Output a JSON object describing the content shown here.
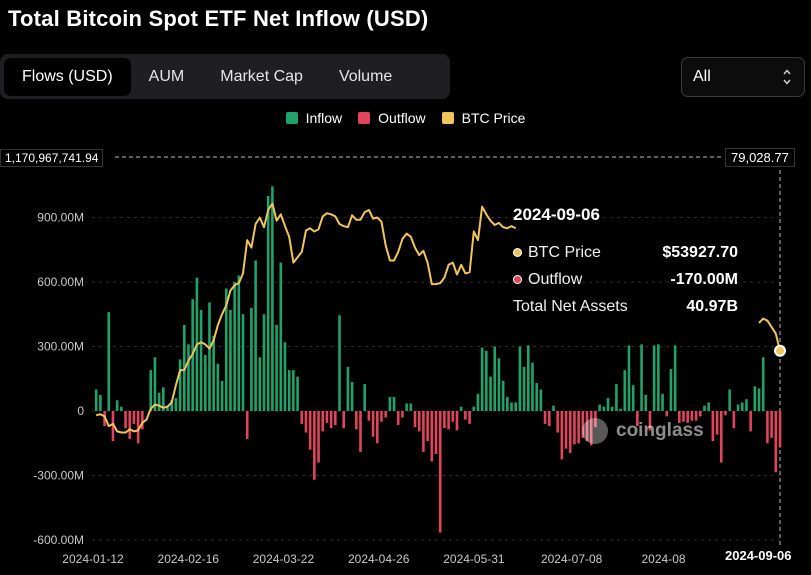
{
  "title": "Total Bitcoin Spot ETF Net Inflow (USD)",
  "tabs": [
    {
      "label": "Flows (USD)",
      "active": true
    },
    {
      "label": "AUM",
      "active": false
    },
    {
      "label": "Market Cap",
      "active": false
    },
    {
      "label": "Volume",
      "active": false
    }
  ],
  "select": {
    "value": "All",
    "icon": "updown-chevron-icon"
  },
  "legend": [
    {
      "label": "Inflow",
      "color": "#1fa36b"
    },
    {
      "label": "Outflow",
      "color": "#e0455b"
    },
    {
      "label": "BTC Price",
      "color": "#f2c55c"
    }
  ],
  "crosshair": {
    "left_value": "1,170,967,741.94",
    "right_value": "79,028.77",
    "date": "2024-09-06"
  },
  "tooltip": {
    "date": "2024-09-06",
    "rows": [
      {
        "label": "BTC Price",
        "value": "$53927.70",
        "dot_color": "#f2c55c"
      },
      {
        "label": "Outflow",
        "value": "-170.00M",
        "dot_color": "#e0455b"
      },
      {
        "label": "Total Net Assets",
        "value": "40.97B",
        "dot_color": ""
      }
    ]
  },
  "watermark": "coinglass",
  "chart_data": {
    "type": "bar",
    "y_ticks": [
      "900.00M",
      "600.00M",
      "300.00M",
      "0",
      "-300.00M",
      "-600.00M"
    ],
    "y_tick_values": [
      900,
      600,
      300,
      0,
      -300,
      -600
    ],
    "x_ticks": [
      "2024-01-12",
      "2024-02-16",
      "2024-03-22",
      "2024-04-26",
      "2024-05-31",
      "2024-07-08",
      "2024-08"
    ],
    "ylim": [
      -600,
      900
    ],
    "xlim": [
      0,
      164
    ],
    "bars": [
      [
        1,
        100
      ],
      [
        2,
        75
      ],
      [
        3,
        -70
      ],
      [
        4,
        460
      ],
      [
        5,
        -140
      ],
      [
        6,
        50
      ],
      [
        7,
        20
      ],
      [
        8,
        -80
      ],
      [
        9,
        -130
      ],
      [
        10,
        -60
      ],
      [
        11,
        -150
      ],
      [
        12,
        -85
      ],
      [
        14,
        190
      ],
      [
        15,
        250
      ],
      [
        16,
        85
      ],
      [
        17,
        110
      ],
      [
        18,
        25
      ],
      [
        19,
        50
      ],
      [
        20,
        60
      ],
      [
        21,
        240
      ],
      [
        22,
        400
      ],
      [
        23,
        310
      ],
      [
        24,
        520
      ],
      [
        25,
        620
      ],
      [
        26,
        470
      ],
      [
        27,
        260
      ],
      [
        28,
        505
      ],
      [
        29,
        350
      ],
      [
        30,
        220
      ],
      [
        31,
        140
      ],
      [
        32,
        570
      ],
      [
        33,
        470
      ],
      [
        34,
        600
      ],
      [
        35,
        630
      ],
      [
        36,
        450
      ],
      [
        37,
        -130
      ],
      [
        38,
        480
      ],
      [
        39,
        700
      ],
      [
        40,
        250
      ],
      [
        41,
        450
      ],
      [
        42,
        1000
      ],
      [
        43,
        1045
      ],
      [
        44,
        400
      ],
      [
        45,
        690
      ],
      [
        46,
        320
      ],
      [
        47,
        190
      ],
      [
        48,
        190
      ],
      [
        49,
        160
      ],
      [
        50,
        -60
      ],
      [
        51,
        -100
      ],
      [
        52,
        -180
      ],
      [
        53,
        -320
      ],
      [
        54,
        -240
      ],
      [
        55,
        -95
      ],
      [
        56,
        -55
      ],
      [
        57,
        -80
      ],
      [
        58,
        -65
      ],
      [
        59,
        445
      ],
      [
        60,
        -80
      ],
      [
        61,
        205
      ],
      [
        62,
        135
      ],
      [
        63,
        -85
      ],
      [
        64,
        -190
      ],
      [
        65,
        125
      ],
      [
        66,
        -45
      ],
      [
        67,
        -120
      ],
      [
        68,
        -150
      ],
      [
        69,
        -50
      ],
      [
        70,
        -30
      ],
      [
        71,
        65
      ],
      [
        72,
        65
      ],
      [
        73,
        -65
      ],
      [
        74,
        -30
      ],
      [
        75,
        35
      ],
      [
        76,
        35
      ],
      [
        77,
        -75
      ],
      [
        78,
        -95
      ],
      [
        79,
        -190
      ],
      [
        80,
        -140
      ],
      [
        81,
        -235
      ],
      [
        82,
        -200
      ],
      [
        83,
        -565
      ],
      [
        84,
        -80
      ],
      [
        85,
        -85
      ],
      [
        86,
        -50
      ],
      [
        87,
        -90
      ],
      [
        88,
        20
      ],
      [
        89,
        -40
      ],
      [
        90,
        -60
      ],
      [
        91,
        20
      ],
      [
        92,
        80
      ],
      [
        93,
        295
      ],
      [
        94,
        280
      ],
      [
        95,
        160
      ],
      [
        96,
        300
      ],
      [
        97,
        245
      ],
      [
        98,
        140
      ],
      [
        99,
        65
      ],
      [
        100,
        40
      ],
      [
        101,
        40
      ],
      [
        102,
        300
      ],
      [
        103,
        205
      ],
      [
        104,
        305
      ],
      [
        105,
        225
      ],
      [
        106,
        130
      ],
      [
        107,
        100
      ],
      [
        108,
        -60
      ],
      [
        109,
        -70
      ],
      [
        110,
        25
      ],
      [
        111,
        -100
      ],
      [
        112,
        -225
      ],
      [
        113,
        -175
      ],
      [
        114,
        -195
      ],
      [
        115,
        -155
      ],
      [
        116,
        -150
      ],
      [
        117,
        -125
      ],
      [
        118,
        -140
      ],
      [
        119,
        -160
      ],
      [
        120,
        -75
      ],
      [
        121,
        30
      ],
      [
        122,
        20
      ],
      [
        123,
        60
      ],
      [
        124,
        20
      ],
      [
        125,
        125
      ],
      [
        126,
        10
      ],
      [
        127,
        190
      ],
      [
        128,
        305
      ],
      [
        129,
        120
      ],
      [
        130,
        -70
      ],
      [
        131,
        310
      ],
      [
        132,
        75
      ],
      [
        133,
        -90
      ],
      [
        134,
        305
      ],
      [
        135,
        310
      ],
      [
        136,
        80
      ],
      [
        137,
        -25
      ],
      [
        138,
        195
      ],
      [
        139,
        305
      ],
      [
        140,
        -55
      ],
      [
        141,
        -50
      ],
      [
        142,
        -55
      ],
      [
        143,
        -45
      ],
      [
        144,
        -45
      ],
      [
        145,
        -25
      ],
      [
        146,
        25
      ],
      [
        147,
        40
      ],
      [
        148,
        -140
      ],
      [
        149,
        -110
      ],
      [
        150,
        -240
      ],
      [
        151,
        -20
      ],
      [
        152,
        100
      ],
      [
        153,
        -80
      ],
      [
        154,
        30
      ],
      [
        155,
        40
      ],
      [
        156,
        55
      ],
      [
        157,
        -95
      ],
      [
        158,
        115
      ],
      [
        159,
        105
      ],
      [
        160,
        250
      ],
      [
        161,
        -150
      ],
      [
        162,
        -125
      ],
      [
        163,
        -285
      ],
      [
        164,
        -170
      ]
    ],
    "btc_price": [
      [
        1,
        -20
      ],
      [
        2,
        -15
      ],
      [
        3,
        -25
      ],
      [
        4,
        -70
      ],
      [
        5,
        -60
      ],
      [
        6,
        -95
      ],
      [
        7,
        -100
      ],
      [
        8,
        -100
      ],
      [
        9,
        -85
      ],
      [
        10,
        -95
      ],
      [
        11,
        -90
      ],
      [
        12,
        -55
      ],
      [
        13,
        -40
      ],
      [
        14,
        10
      ],
      [
        15,
        30
      ],
      [
        16,
        25
      ],
      [
        17,
        15
      ],
      [
        18,
        20
      ],
      [
        19,
        40
      ],
      [
        20,
        120
      ],
      [
        21,
        190
      ],
      [
        22,
        190
      ],
      [
        23,
        235
      ],
      [
        24,
        265
      ],
      [
        25,
        310
      ],
      [
        26,
        320
      ],
      [
        27,
        310
      ],
      [
        28,
        290
      ],
      [
        29,
        330
      ],
      [
        30,
        400
      ],
      [
        31,
        450
      ],
      [
        32,
        490
      ],
      [
        33,
        560
      ],
      [
        34,
        585
      ],
      [
        35,
        595
      ],
      [
        36,
        640
      ],
      [
        37,
        795
      ],
      [
        38,
        760
      ],
      [
        39,
        870
      ],
      [
        40,
        900
      ],
      [
        41,
        855
      ],
      [
        42,
        935
      ],
      [
        43,
        965
      ],
      [
        44,
        885
      ],
      [
        45,
        915
      ],
      [
        46,
        860
      ],
      [
        47,
        810
      ],
      [
        48,
        690
      ],
      [
        49,
        715
      ],
      [
        50,
        740
      ],
      [
        51,
        840
      ],
      [
        52,
        850
      ],
      [
        53,
        835
      ],
      [
        54,
        845
      ],
      [
        55,
        905
      ],
      [
        56,
        920
      ],
      [
        57,
        915
      ],
      [
        58,
        905
      ],
      [
        59,
        870
      ],
      [
        60,
        860
      ],
      [
        61,
        855
      ],
      [
        62,
        910
      ],
      [
        63,
        890
      ],
      [
        64,
        890
      ],
      [
        65,
        925
      ],
      [
        66,
        935
      ],
      [
        67,
        895
      ],
      [
        68,
        900
      ],
      [
        69,
        880
      ],
      [
        70,
        770
      ],
      [
        71,
        700
      ],
      [
        72,
        700
      ],
      [
        73,
        740
      ],
      [
        74,
        800
      ],
      [
        75,
        825
      ],
      [
        76,
        810
      ],
      [
        77,
        760
      ],
      [
        78,
        725
      ],
      [
        79,
        745
      ],
      [
        80,
        690
      ],
      [
        81,
        590
      ],
      [
        82,
        590
      ],
      [
        83,
        595
      ],
      [
        84,
        620
      ],
      [
        85,
        680
      ],
      [
        86,
        690
      ],
      [
        87,
        635
      ],
      [
        88,
        680
      ],
      [
        89,
        640
      ],
      [
        90,
        645
      ],
      [
        91,
        835
      ],
      [
        92,
        795
      ],
      [
        93,
        950
      ],
      [
        94,
        915
      ],
      [
        95,
        885
      ],
      [
        96,
        865
      ],
      [
        97,
        875
      ],
      [
        98,
        855
      ],
      [
        99,
        850
      ],
      [
        100,
        860
      ],
      [
        101,
        850
      ]
    ],
    "btc_price_tail": [
      [
        159,
        410
      ],
      [
        160,
        430
      ],
      [
        161,
        420
      ],
      [
        162,
        390
      ],
      [
        163,
        360
      ],
      [
        164,
        280
      ]
    ]
  }
}
